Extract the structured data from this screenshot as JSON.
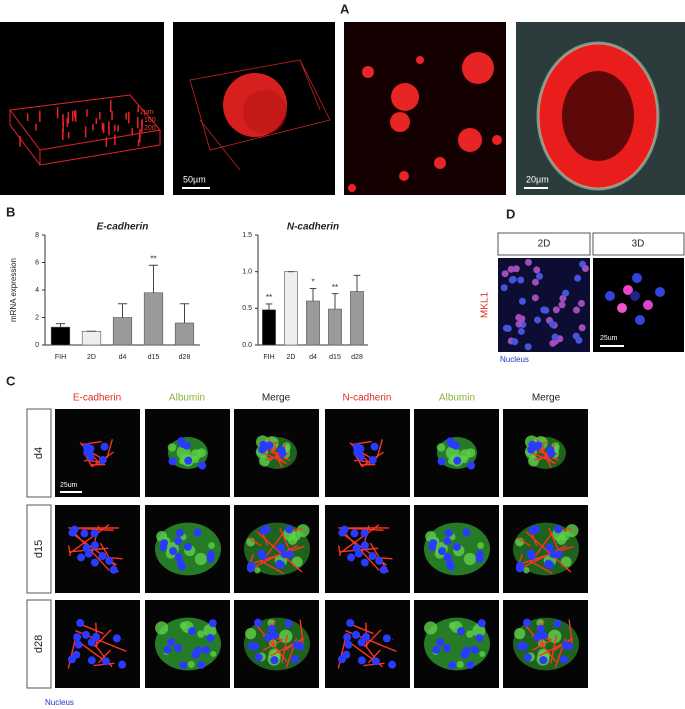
{
  "panel_labels": [
    "A",
    "B",
    "C",
    "D"
  ],
  "panel_a": {
    "image_1_labels": [
      "2µm",
      "100",
      "200"
    ],
    "scale_bars": [
      "50µm",
      "20µm"
    ]
  },
  "chart_data": [
    {
      "type": "bar",
      "title": "E-cadherin",
      "y_label": "mRNA expression",
      "categories": [
        "FIH",
        "2D",
        "d4",
        "d15",
        "d28"
      ],
      "values": [
        1.3,
        1.0,
        2.0,
        3.8,
        1.6
      ],
      "errors": [
        0.25,
        0,
        1.0,
        2.0,
        1.4
      ],
      "colors": [
        "#000000",
        "#eeeeee",
        "#9a9a9a",
        "#9a9a9a",
        "#9a9a9a"
      ],
      "annotations": [
        null,
        null,
        null,
        "**",
        null
      ],
      "ylim": [
        0,
        8
      ],
      "yticks": [
        0,
        2,
        4,
        6,
        8
      ]
    },
    {
      "type": "bar",
      "title": "N-cadherin",
      "categories": [
        "FIH",
        "2D",
        "d4",
        "d15",
        "d28"
      ],
      "values": [
        0.48,
        1.0,
        0.6,
        0.49,
        0.73
      ],
      "errors": [
        0.08,
        0,
        0.17,
        0.21,
        0.22
      ],
      "colors": [
        "#000000",
        "#eeeeee",
        "#9a9a9a",
        "#9a9a9a",
        "#9a9a9a"
      ],
      "annotations": [
        "**",
        null,
        "*",
        "**",
        null
      ],
      "ylim": [
        0,
        1.5
      ],
      "yticks": [
        {
          "value": 0,
          "label": "0.0"
        },
        0.5,
        {
          "value": 1,
          "label": "1.0"
        },
        1.5
      ]
    }
  ],
  "panel_c": {
    "columns": [
      "E-cadherin",
      "Albumin",
      "Merge",
      "N-cadherin",
      "Albumin",
      "Merge"
    ],
    "rows": [
      "d4",
      "d15",
      "d28"
    ],
    "scale_bar": "25um",
    "legend": "Nucleus"
  },
  "panel_d": {
    "columns": [
      "2D",
      "3D"
    ],
    "stain": "MKL1",
    "scale_bar": "25um",
    "legend": "Nucleus"
  }
}
